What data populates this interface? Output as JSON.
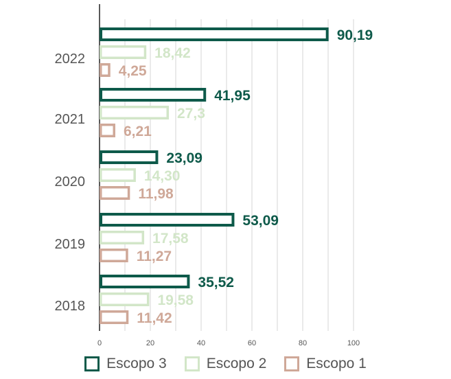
{
  "chart_data": {
    "type": "bar",
    "orientation": "horizontal",
    "categories": [
      "2022",
      "2021",
      "2020",
      "2019",
      "2018"
    ],
    "series": [
      {
        "name": "Escopo 3",
        "color": "#0e5a4a",
        "values": [
          90.19,
          41.95,
          23.09,
          53.09,
          35.52
        ],
        "labels": [
          "90,19",
          "41,95",
          "23,09",
          "53,09",
          "35,52"
        ]
      },
      {
        "name": "Escopo 2",
        "color": "#d2e6c8",
        "values": [
          18.42,
          27.3,
          14.3,
          17.58,
          19.58
        ],
        "labels": [
          "18,42",
          "27,3",
          "14,30",
          "17,58",
          "19,58"
        ]
      },
      {
        "name": "Escopo 1",
        "color": "#cfa898",
        "values": [
          4.25,
          6.21,
          11.98,
          11.27,
          11.42
        ],
        "labels": [
          "4,25",
          "6,21",
          "11,98",
          "11,27",
          "11,42"
        ]
      }
    ],
    "xlim": [
      0,
      100
    ],
    "xticks": [
      0,
      20,
      40,
      60,
      80,
      100
    ],
    "grid": true,
    "legend": "bottom"
  }
}
